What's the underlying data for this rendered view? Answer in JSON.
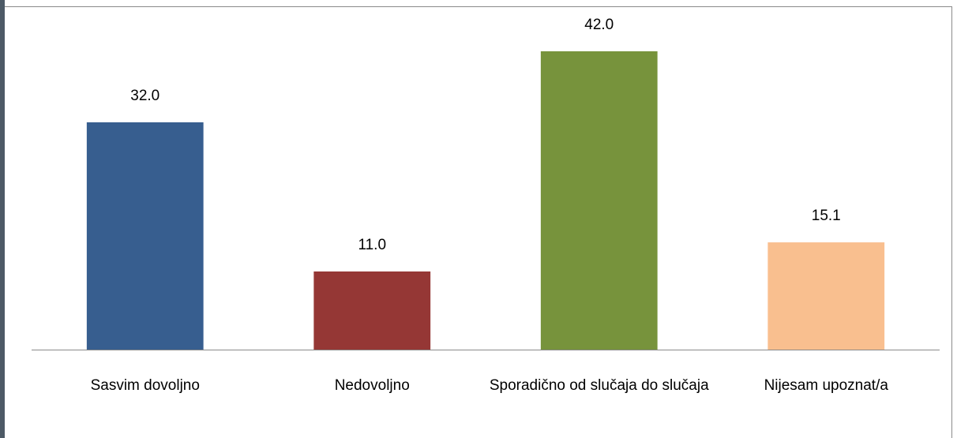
{
  "chart_data": {
    "type": "bar",
    "categories": [
      "Sasvim dovoljno",
      "Nedovoljno",
      "Sporadično od slučaja do slučaja",
      "Nijesam upoznat/a"
    ],
    "values": [
      32.0,
      11.0,
      42.0,
      15.1
    ],
    "value_labels": [
      "32.0",
      "11.0",
      "42.0",
      "15.1"
    ],
    "colors": [
      "#375e8f",
      "#953735",
      "#77933c",
      "#f9bf8f"
    ],
    "ylim": [
      0,
      45
    ]
  }
}
